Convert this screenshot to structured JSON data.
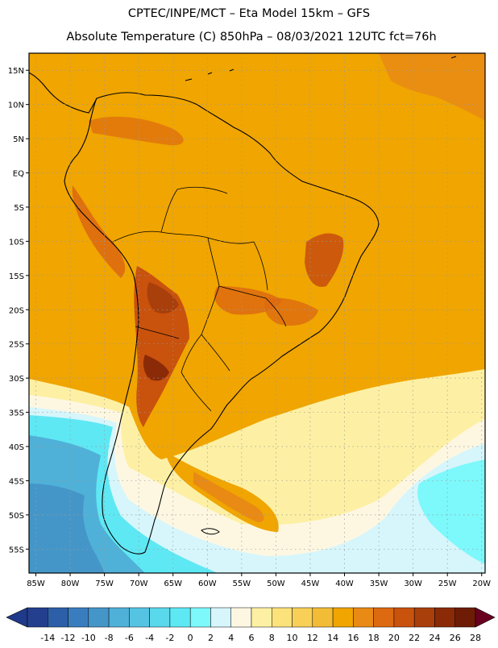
{
  "header": {
    "line1": "CPTEC/INPE/MCT –  Eta Model 15km – GFS",
    "line2": "Absolute Temperature (C) 850hPa – 08/03/2021 12UTC fct=76h"
  },
  "map": {
    "lon_range": [
      -86,
      -19.5
    ],
    "lat_range": [
      -58.5,
      17.5
    ],
    "lat_ticks": [
      {
        "value": 15,
        "label": "15N"
      },
      {
        "value": 10,
        "label": "10N"
      },
      {
        "value": 5,
        "label": "5N"
      },
      {
        "value": 0,
        "label": "EQ"
      },
      {
        "value": -5,
        "label": "5S"
      },
      {
        "value": -10,
        "label": "10S"
      },
      {
        "value": -15,
        "label": "15S"
      },
      {
        "value": -20,
        "label": "20S"
      },
      {
        "value": -25,
        "label": "25S"
      },
      {
        "value": -30,
        "label": "30S"
      },
      {
        "value": -35,
        "label": "35S"
      },
      {
        "value": -40,
        "label": "40S"
      },
      {
        "value": -45,
        "label": "45S"
      },
      {
        "value": -50,
        "label": "50S"
      },
      {
        "value": -55,
        "label": "55S"
      }
    ],
    "lon_ticks": [
      {
        "value": -85,
        "label": "85W"
      },
      {
        "value": -80,
        "label": "80W"
      },
      {
        "value": -75,
        "label": "75W"
      },
      {
        "value": -70,
        "label": "70W"
      },
      {
        "value": -65,
        "label": "65W"
      },
      {
        "value": -60,
        "label": "60W"
      },
      {
        "value": -55,
        "label": "55W"
      },
      {
        "value": -50,
        "label": "50W"
      },
      {
        "value": -45,
        "label": "45W"
      },
      {
        "value": -40,
        "label": "40W"
      },
      {
        "value": -35,
        "label": "35W"
      },
      {
        "value": -30,
        "label": "30W"
      },
      {
        "value": -25,
        "label": "25W"
      },
      {
        "value": -20,
        "label": "20W"
      }
    ],
    "background_color": "#f0a500",
    "coast_color": "#000000"
  },
  "colorbar": {
    "labels": [
      "-14",
      "-12",
      "-10",
      "-8",
      "-6",
      "-4",
      "-2",
      "0",
      "2",
      "4",
      "6",
      "8",
      "10",
      "12",
      "14",
      "16",
      "18",
      "20",
      "22",
      "24",
      "26",
      "28"
    ],
    "colors": [
      "#243f8e",
      "#2d5fa8",
      "#3a7dbf",
      "#4596c8",
      "#4fb1d8",
      "#55c4e2",
      "#5ad8ec",
      "#5ee8f4",
      "#7df8fb",
      "#d6f6fb",
      "#fdf7e2",
      "#fdf0a4",
      "#fbe27a",
      "#f8d058",
      "#f2bc36",
      "#f0a500",
      "#e98a14",
      "#dd6a10",
      "#c9520d",
      "#a93f0a",
      "#8a2a07",
      "#6e1c05"
    ],
    "under_color": "#1f3a8a",
    "over_color": "#6a0020"
  }
}
